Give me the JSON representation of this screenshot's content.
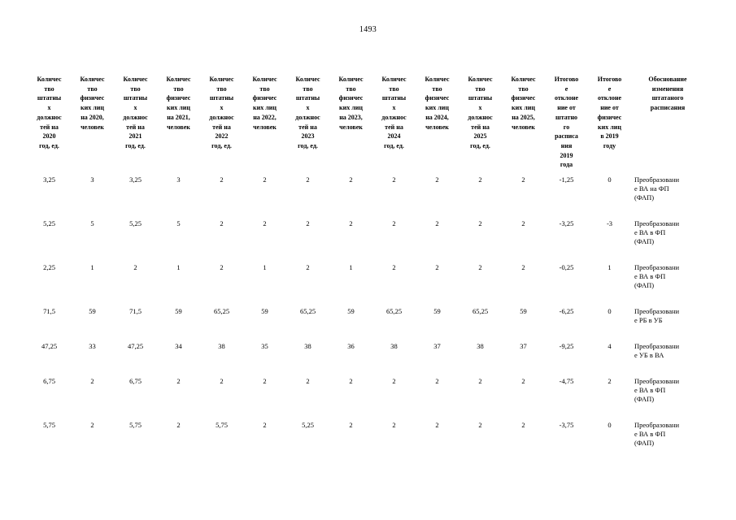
{
  "page": {
    "number": "1493"
  },
  "colors": {
    "text": "#000000",
    "background": "#ffffff"
  },
  "table": {
    "headers": [
      "Количес\nтво\nштатны\nх\nдолжнос\nтей на\n2020\nгод, ед.",
      "Количес\nтво\nфизичес\nких лиц\nна 2020,\nчеловек",
      "Количес\nтво\nштатны\nх\nдолжнос\nтей на\n2021\nгод, ед.",
      "Количес\nтво\nфизичес\nких лиц\nна 2021,\nчеловек",
      "Количес\nтво\nштатны\nх\nдолжнос\nтей на\n2022\nгод, ед.",
      "Количес\nтво\nфизичес\nких лиц\nна 2022,\nчеловек",
      "Количес\nтво\nштатны\nх\nдолжнос\nтей на\n2023\nгод, ед.",
      "Количес\nтво\nфизичес\nких лиц\nна 2023,\nчеловек",
      "Количес\nтво\nштатны\nх\nдолжнос\nтей на\n2024\nгод, ед.",
      "Количес\nтво\nфизичес\nких лиц\nна 2024,\nчеловек",
      "Количес\nтво\nштатны\nх\nдолжнос\nтей на\n2025\nгод, ед.",
      "Количес\nтво\nфизичес\nких лиц\nна 2025,\nчеловек",
      "Итогово\nе\nотклоне\nние от\nштатно\nго\nрасписа\nния\n2019\nгода",
      "Итогово\nе\nотклоне\nние от\nфизичес\nких лиц\nв 2019\nгоду",
      "Обоснование\nизменения\nштатаного\nрасписания"
    ],
    "rows": [
      {
        "cells": [
          "3,25",
          "3",
          "3,25",
          "3",
          "2",
          "2",
          "2",
          "2",
          "2",
          "2",
          "2",
          "2",
          "-1,25",
          "0"
        ],
        "justification": "Преобразование ВА на ФП (ФАП)"
      },
      {
        "cells": [
          "5,25",
          "5",
          "5,25",
          "5",
          "2",
          "2",
          "2",
          "2",
          "2",
          "2",
          "2",
          "2",
          "-3,25",
          "-3"
        ],
        "justification": "Преобразование ВА в ФП (ФАП)"
      },
      {
        "cells": [
          "2,25",
          "1",
          "2",
          "1",
          "2",
          "1",
          "2",
          "1",
          "2",
          "2",
          "2",
          "2",
          "-0,25",
          "1"
        ],
        "justification": "Преобразование ВА в ФП (ФАП)"
      },
      {
        "cells": [
          "71,5",
          "59",
          "71,5",
          "59",
          "65,25",
          "59",
          "65,25",
          "59",
          "65,25",
          "59",
          "65,25",
          "59",
          "-6,25",
          "0"
        ],
        "justification": "Преобразование РБ в УБ"
      },
      {
        "cells": [
          "47,25",
          "33",
          "47,25",
          "34",
          "38",
          "35",
          "38",
          "36",
          "38",
          "37",
          "38",
          "37",
          "-9,25",
          "4"
        ],
        "justification": "Преобразование УБ в ВА"
      },
      {
        "cells": [
          "6,75",
          "2",
          "6,75",
          "2",
          "2",
          "2",
          "2",
          "2",
          "2",
          "2",
          "2",
          "2",
          "-4,75",
          "2"
        ],
        "justification": "Преобразование ВА в ФП (ФАП)"
      },
      {
        "cells": [
          "5,75",
          "2",
          "5,75",
          "2",
          "5,75",
          "2",
          "5,25",
          "2",
          "2",
          "2",
          "2",
          "2",
          "-3,75",
          "0"
        ],
        "justification": "Преобразование ВА в ФП (ФАП)"
      }
    ]
  }
}
